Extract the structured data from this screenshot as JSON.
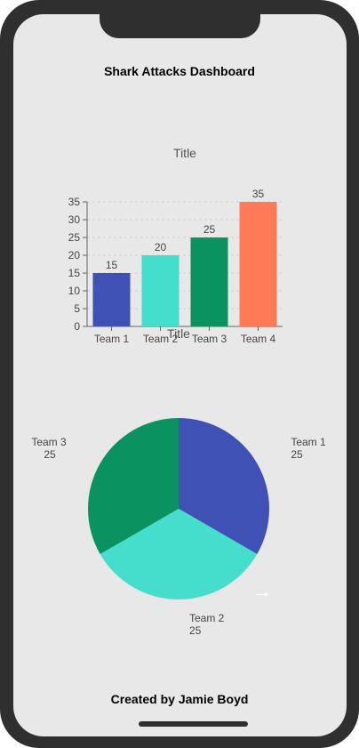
{
  "app": {
    "title": "Shark Attacks Dashboard",
    "footer": "Created by Jamie Boyd"
  },
  "next_arrow": {
    "icon": "arrow-right-icon",
    "glyph": "→"
  },
  "chart_data": [
    {
      "type": "bar",
      "title": "Title",
      "categories": [
        "Team 1",
        "Team 2",
        "Team 3",
        "Team 4"
      ],
      "values": [
        15,
        20,
        25,
        35
      ],
      "colors": [
        "#4051b5",
        "#45ddcc",
        "#0a9360",
        "#ff7b57"
      ],
      "ylim": [
        0,
        35
      ],
      "yticks": [
        0,
        5,
        10,
        15,
        20,
        25,
        30,
        35
      ],
      "grid": true
    },
    {
      "type": "pie",
      "title": "Title",
      "labels": [
        "Team 1",
        "Team 2",
        "Team 3"
      ],
      "values": [
        25,
        25,
        25
      ],
      "colors": [
        "#4051b5",
        "#45ddcc",
        "#0a9360"
      ]
    }
  ]
}
